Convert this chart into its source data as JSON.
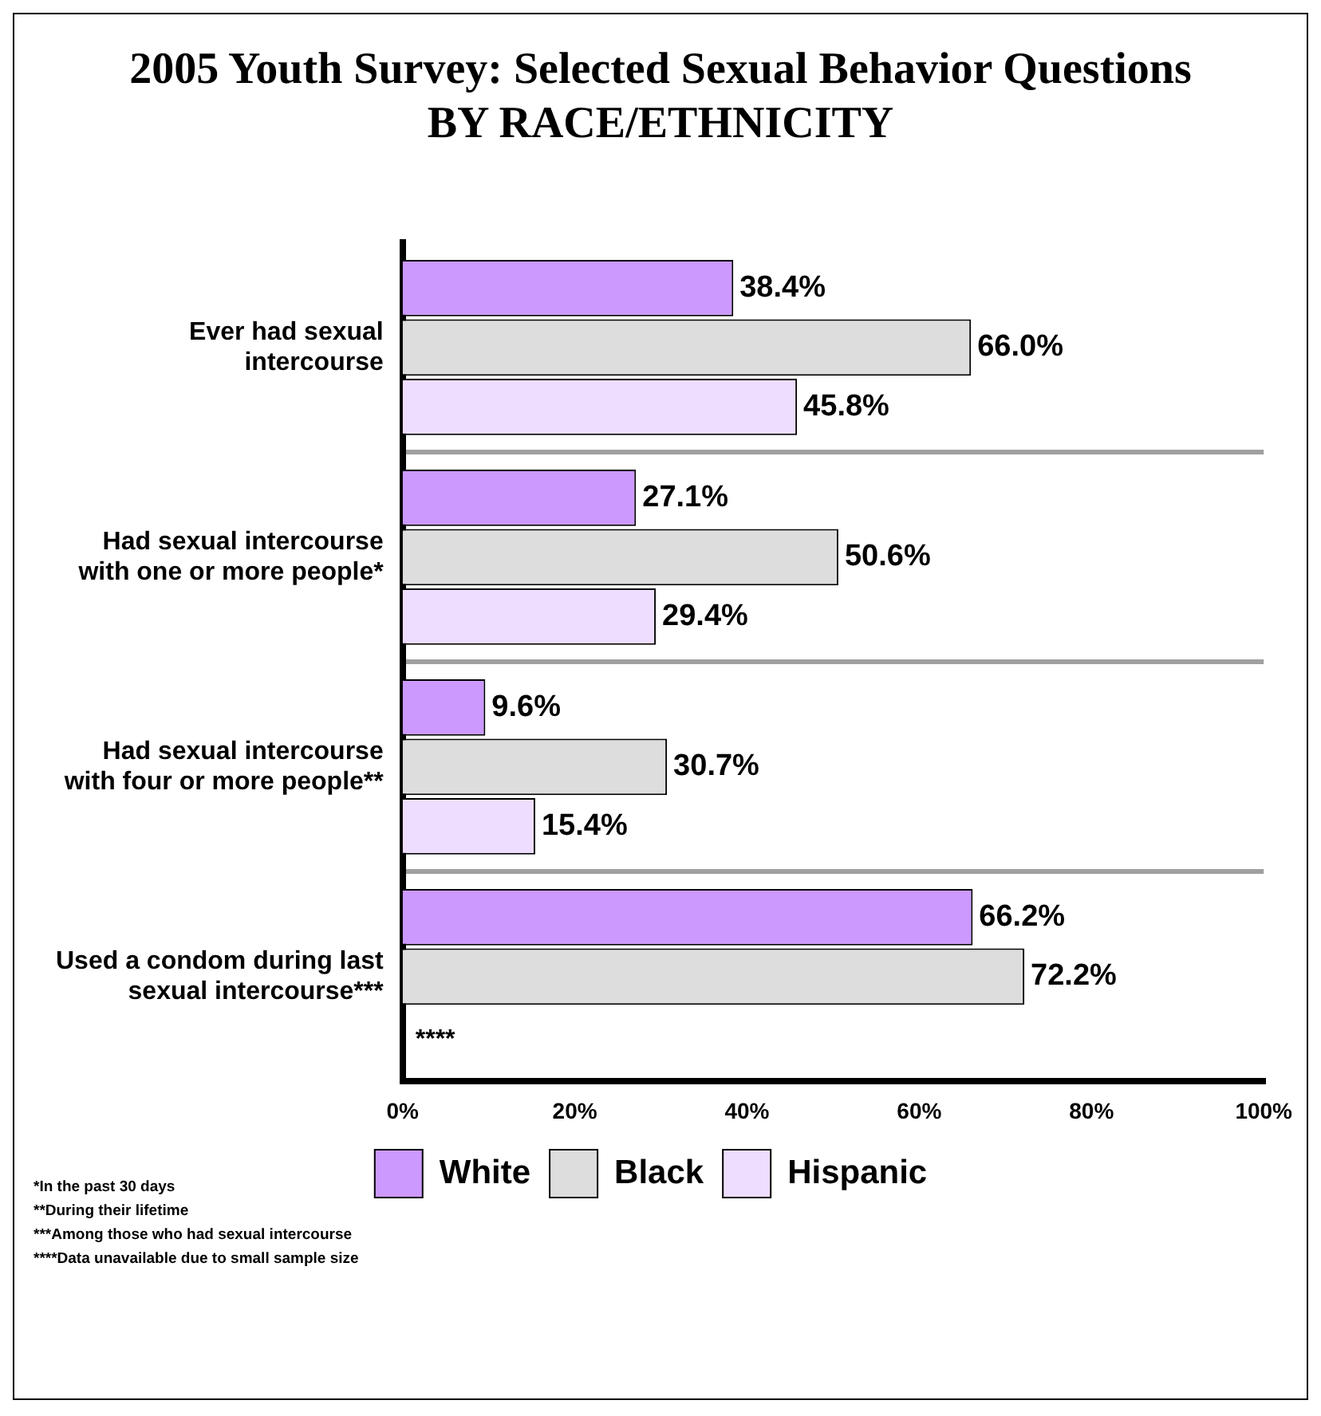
{
  "chart_data": {
    "type": "bar",
    "orientation": "horizontal",
    "title": "2005 Youth Survey: Selected Sexual Behavior Questions",
    "subtitle": "BY RACE/ETHNICITY",
    "categories": [
      "Ever had sexual intercourse",
      "Had sexual intercourse with one or more people*",
      "Had sexual intercourse with four or more people**",
      "Used a condom during last sexual intercourse***"
    ],
    "series": [
      {
        "name": "White",
        "color": "#cc99ff",
        "values": [
          38.4,
          27.1,
          9.6,
          66.2
        ],
        "value_labels": [
          "38.4%",
          "27.1%",
          "9.6%",
          "66.2%"
        ]
      },
      {
        "name": "Black",
        "color": "#dddddd",
        "values": [
          66.0,
          50.6,
          30.7,
          72.2
        ],
        "value_labels": [
          "66.0%",
          "50.6%",
          "30.7%",
          "72.2%"
        ]
      },
      {
        "name": "Hispanic",
        "color": "#eeddff",
        "values": [
          45.8,
          29.4,
          15.4,
          null
        ],
        "value_labels": [
          "45.8%",
          "29.4%",
          "15.4%",
          null
        ]
      }
    ],
    "xlim": [
      0,
      100
    ],
    "xticks": [
      {
        "value": 0,
        "label": "0%"
      },
      {
        "value": 20,
        "label": "20%"
      },
      {
        "value": 40,
        "label": "40%"
      },
      {
        "value": 60,
        "label": "60%"
      },
      {
        "value": 80,
        "label": "80%"
      },
      {
        "value": 100,
        "label": "100%"
      }
    ],
    "grid": "y",
    "legend": "bottom",
    "annotations": [
      {
        "text": "****",
        "x": 0,
        "y": "Used a condom during last sexual intercourse***"
      },
      "*In the past 30 days",
      "**During their lifetime",
      "***Among those who had sexual intercourse",
      "****Data unavailable due to small sample size"
    ]
  }
}
